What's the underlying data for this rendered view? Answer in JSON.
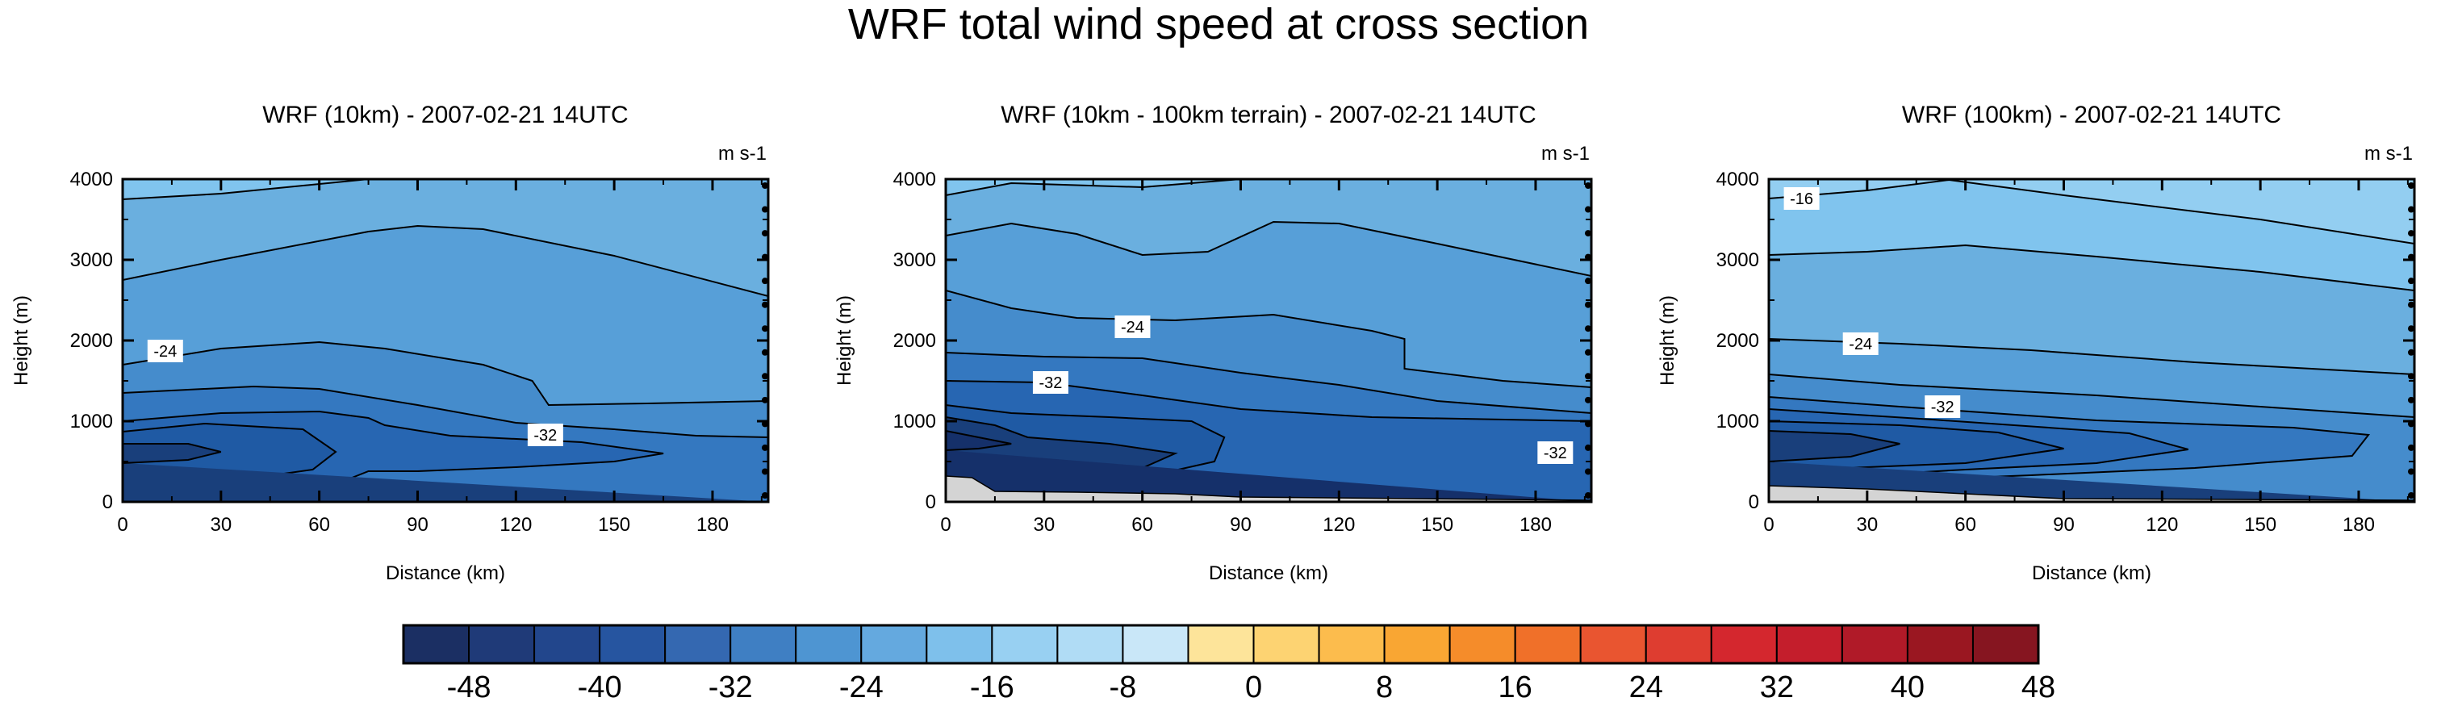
{
  "figure": {
    "title": "WRF total wind speed at cross section"
  },
  "chart_data": [
    {
      "type": "contour",
      "title": "WRF (10km) - 2007-02-21 14UTC",
      "xlabel": "Distance (km)",
      "ylabel": "Height (m)",
      "units": "m s-1",
      "xlim": [
        0,
        197
      ],
      "ylim": [
        0,
        4000
      ],
      "xticks": [
        "0",
        "30",
        "60",
        "90",
        "120",
        "150",
        "180"
      ],
      "yticks": [
        "0",
        "1000",
        "2000",
        "3000",
        "4000"
      ],
      "terrain": [
        [
          0,
          0
        ],
        [
          197,
          0
        ]
      ],
      "fill_bands": [
        {
          "level": -16,
          "color": "#80c4ee",
          "profile": [
            [
              0,
              4000
            ],
            [
              197,
              4000
            ]
          ]
        },
        {
          "level": -20,
          "color": "#6aafdf",
          "profile": [
            [
              0,
              3750
            ],
            [
              30,
              3820
            ],
            [
              75,
              4000
            ],
            [
              197,
              4000
            ]
          ]
        },
        {
          "level": -24,
          "color": "#579fd8",
          "profile": [
            [
              0,
              2750
            ],
            [
              30,
              3000
            ],
            [
              75,
              3350
            ],
            [
              90,
              3420
            ],
            [
              110,
              3380
            ],
            [
              150,
              3050
            ],
            [
              197,
              2550
            ]
          ]
        },
        {
          "level": -28,
          "color": "#458ccc",
          "profile": [
            [
              0,
              1700
            ],
            [
              30,
              1900
            ],
            [
              60,
              1980
            ],
            [
              80,
              1900
            ],
            [
              110,
              1700
            ],
            [
              125,
              1500
            ],
            [
              130,
              1200
            ],
            [
              160,
              1220
            ],
            [
              197,
              1250
            ]
          ]
        },
        {
          "level": -32,
          "color": "#3478c0",
          "profile": [
            [
              0,
              1350
            ],
            [
              40,
              1430
            ],
            [
              60,
              1400
            ],
            [
              90,
              1200
            ],
            [
              120,
              980
            ],
            [
              150,
              900
            ],
            [
              175,
              820
            ],
            [
              197,
              800
            ]
          ]
        },
        {
          "level": -36,
          "color": "#2766b2",
          "profile": [
            [
              0,
              1000
            ],
            [
              30,
              1100
            ],
            [
              60,
              1120
            ],
            [
              75,
              1040
            ],
            [
              80,
              950
            ],
            [
              100,
              820
            ],
            [
              140,
              740
            ],
            [
              165,
              600
            ],
            [
              150,
              500
            ],
            [
              120,
              430
            ],
            [
              90,
              380
            ],
            [
              75,
              380
            ],
            [
              70,
              300
            ],
            [
              40,
              160
            ],
            [
              0,
              100
            ]
          ]
        },
        {
          "level": -40,
          "color": "#1f5aa4",
          "profile": [
            [
              0,
              870
            ],
            [
              25,
              970
            ],
            [
              55,
              900
            ],
            [
              65,
              620
            ],
            [
              58,
              400
            ],
            [
              30,
              240
            ],
            [
              0,
              190
            ]
          ]
        },
        {
          "level": -44,
          "color": "#193f7b",
          "profile": [
            [
              0,
              720
            ],
            [
              20,
              720
            ],
            [
              30,
              620
            ],
            [
              20,
              520
            ],
            [
              0,
              480
            ]
          ]
        }
      ],
      "labels": [
        {
          "text": "-24",
          "x": 13,
          "y": 1870
        },
        {
          "text": "-32",
          "x": 129,
          "y": 830
        }
      ]
    },
    {
      "type": "contour",
      "title": "WRF (10km - 100km terrain) - 2007-02-21 14UTC",
      "xlabel": "Distance (km)",
      "ylabel": "Height (m)",
      "units": "m s-1",
      "xlim": [
        0,
        197
      ],
      "ylim": [
        0,
        4000
      ],
      "xticks": [
        "0",
        "30",
        "60",
        "90",
        "120",
        "150",
        "180"
      ],
      "yticks": [
        "0",
        "1000",
        "2000",
        "3000",
        "4000"
      ],
      "terrain": [
        [
          0,
          320
        ],
        [
          8,
          300
        ],
        [
          15,
          130
        ],
        [
          40,
          120
        ],
        [
          70,
          100
        ],
        [
          90,
          60
        ],
        [
          197,
          20
        ]
      ],
      "fill_bands": [
        {
          "level": -16,
          "color": "#80c4ee",
          "profile": [
            [
              0,
              4000
            ],
            [
              197,
              4000
            ]
          ]
        },
        {
          "level": -20,
          "color": "#6aafdf",
          "profile": [
            [
              0,
              3800
            ],
            [
              20,
              3950
            ],
            [
              60,
              3900
            ],
            [
              90,
              4000
            ],
            [
              197,
              4000
            ]
          ]
        },
        {
          "level": -24,
          "color": "#579fd8",
          "profile": [
            [
              0,
              3300
            ],
            [
              20,
              3450
            ],
            [
              40,
              3320
            ],
            [
              60,
              3060
            ],
            [
              80,
              3100
            ],
            [
              100,
              3470
            ],
            [
              120,
              3450
            ],
            [
              150,
              3200
            ],
            [
              197,
              2800
            ]
          ]
        },
        {
          "level": -28,
          "color": "#458ccc",
          "profile": [
            [
              0,
              2620
            ],
            [
              20,
              2400
            ],
            [
              40,
              2280
            ],
            [
              70,
              2250
            ],
            [
              100,
              2320
            ],
            [
              130,
              2120
            ],
            [
              140,
              2020
            ],
            [
              140,
              1650
            ],
            [
              170,
              1500
            ],
            [
              197,
              1420
            ]
          ]
        },
        {
          "level": -32,
          "color": "#3478c0",
          "profile": [
            [
              0,
              1850
            ],
            [
              30,
              1800
            ],
            [
              60,
              1780
            ],
            [
              90,
              1600
            ],
            [
              120,
              1450
            ],
            [
              150,
              1250
            ],
            [
              197,
              1100
            ]
          ]
        },
        {
          "level": -36,
          "color": "#2766b2",
          "profile": [
            [
              0,
              1500
            ],
            [
              30,
              1480
            ],
            [
              60,
              1320
            ],
            [
              90,
              1150
            ],
            [
              130,
              1050
            ],
            [
              197,
              1000
            ]
          ]
        },
        {
          "level": -40,
          "color": "#1f5aa4",
          "profile": [
            [
              0,
              1200
            ],
            [
              20,
              1100
            ],
            [
              50,
              1050
            ],
            [
              75,
              1000
            ],
            [
              85,
              800
            ],
            [
              82,
              500
            ],
            [
              60,
              300
            ],
            [
              40,
              230
            ],
            [
              0,
              360
            ]
          ]
        },
        {
          "level": -44,
          "color": "#193f7b",
          "profile": [
            [
              0,
              1050
            ],
            [
              15,
              950
            ],
            [
              25,
              800
            ],
            [
              50,
              720
            ],
            [
              70,
              600
            ],
            [
              60,
              420
            ],
            [
              40,
              400
            ],
            [
              20,
              440
            ],
            [
              0,
              480
            ]
          ]
        },
        {
          "level": -48,
          "color": "#15306a",
          "profile": [
            [
              0,
              880
            ],
            [
              10,
              800
            ],
            [
              20,
              720
            ],
            [
              10,
              660
            ],
            [
              0,
              640
            ]
          ]
        }
      ],
      "labels": [
        {
          "text": "-24",
          "x": 57,
          "y": 2170
        },
        {
          "text": "-32",
          "x": 32,
          "y": 1480
        },
        {
          "text": "-32",
          "x": 186,
          "y": 610
        }
      ]
    },
    {
      "type": "contour",
      "title": "WRF (100km) - 2007-02-21 14UTC",
      "xlabel": "Distance (km)",
      "ylabel": "Height (m)",
      "units": "m s-1",
      "xlim": [
        0,
        197
      ],
      "ylim": [
        0,
        4000
      ],
      "xticks": [
        "0",
        "30",
        "60",
        "90",
        "120",
        "150",
        "180"
      ],
      "yticks": [
        "0",
        "1000",
        "2000",
        "3000",
        "4000"
      ],
      "terrain": [
        [
          0,
          200
        ],
        [
          30,
          160
        ],
        [
          60,
          100
        ],
        [
          90,
          40
        ],
        [
          197,
          20
        ]
      ],
      "fill_bands": [
        {
          "level": -12,
          "color": "#93cef1",
          "profile": [
            [
              0,
              4000
            ],
            [
              197,
              4000
            ]
          ]
        },
        {
          "level": -16,
          "color": "#80c4ee",
          "profile": [
            [
              0,
              3760
            ],
            [
              30,
              3860
            ],
            [
              55,
              3990
            ],
            [
              90,
              3800
            ],
            [
              150,
              3500
            ],
            [
              197,
              3200
            ]
          ]
        },
        {
          "level": -20,
          "color": "#6aafdf",
          "profile": [
            [
              0,
              3060
            ],
            [
              30,
              3100
            ],
            [
              60,
              3180
            ],
            [
              100,
              3040
            ],
            [
              150,
              2850
            ],
            [
              197,
              2620
            ]
          ]
        },
        {
          "level": -24,
          "color": "#579fd8",
          "profile": [
            [
              0,
              2020
            ],
            [
              40,
              1960
            ],
            [
              80,
              1880
            ],
            [
              130,
              1730
            ],
            [
              197,
              1580
            ]
          ]
        },
        {
          "level": -28,
          "color": "#458ccc",
          "profile": [
            [
              0,
              1580
            ],
            [
              40,
              1450
            ],
            [
              100,
              1320
            ],
            [
              150,
              1180
            ],
            [
              197,
              1050
            ]
          ]
        },
        {
          "level": -32,
          "color": "#3478c0",
          "profile": [
            [
              0,
              1300
            ],
            [
              40,
              1180
            ],
            [
              100,
              1010
            ],
            [
              160,
              920
            ],
            [
              183,
              830
            ],
            [
              178,
              570
            ],
            [
              130,
              420
            ],
            [
              80,
              330
            ],
            [
              0,
              200
            ]
          ]
        },
        {
          "level": -36,
          "color": "#2766b2",
          "profile": [
            [
              0,
              1150
            ],
            [
              50,
              1020
            ],
            [
              110,
              850
            ],
            [
              128,
              650
            ],
            [
              100,
              480
            ],
            [
              60,
              400
            ],
            [
              0,
              260
            ]
          ]
        },
        {
          "level": -40,
          "color": "#1f5aa4",
          "profile": [
            [
              0,
              1000
            ],
            [
              40,
              950
            ],
            [
              70,
              860
            ],
            [
              90,
              660
            ],
            [
              60,
              480
            ],
            [
              30,
              430
            ],
            [
              0,
              380
            ]
          ]
        },
        {
          "level": -44,
          "color": "#193f7b",
          "profile": [
            [
              0,
              880
            ],
            [
              25,
              840
            ],
            [
              40,
              720
            ],
            [
              25,
              560
            ],
            [
              0,
              500
            ]
          ]
        }
      ],
      "labels": [
        {
          "text": "-16",
          "x": 10,
          "y": 3760
        },
        {
          "text": "-24",
          "x": 28,
          "y": 1960
        },
        {
          "text": "-32",
          "x": 53,
          "y": 1180
        }
      ]
    }
  ],
  "colorbar": {
    "labels": [
      "-48",
      "-40",
      "-32",
      "-24",
      "-16",
      "-8",
      "0",
      "8",
      "16",
      "24",
      "32",
      "40",
      "48"
    ],
    "colors": [
      "#1b2f63",
      "#1f3a78",
      "#22468c",
      "#2655a0",
      "#3468b1",
      "#3f7fc3",
      "#4e95d2",
      "#64a9df",
      "#7ec0eb",
      "#98d0f2",
      "#b0dcf5",
      "#c9e7f8",
      "#fde49a",
      "#fdd372",
      "#fcbc4d",
      "#f9a633",
      "#f58c2a",
      "#f07029",
      "#e95530",
      "#de3d30",
      "#d4272e",
      "#c41e2c",
      "#b01a28",
      "#9a1721",
      "#861520"
    ]
  }
}
